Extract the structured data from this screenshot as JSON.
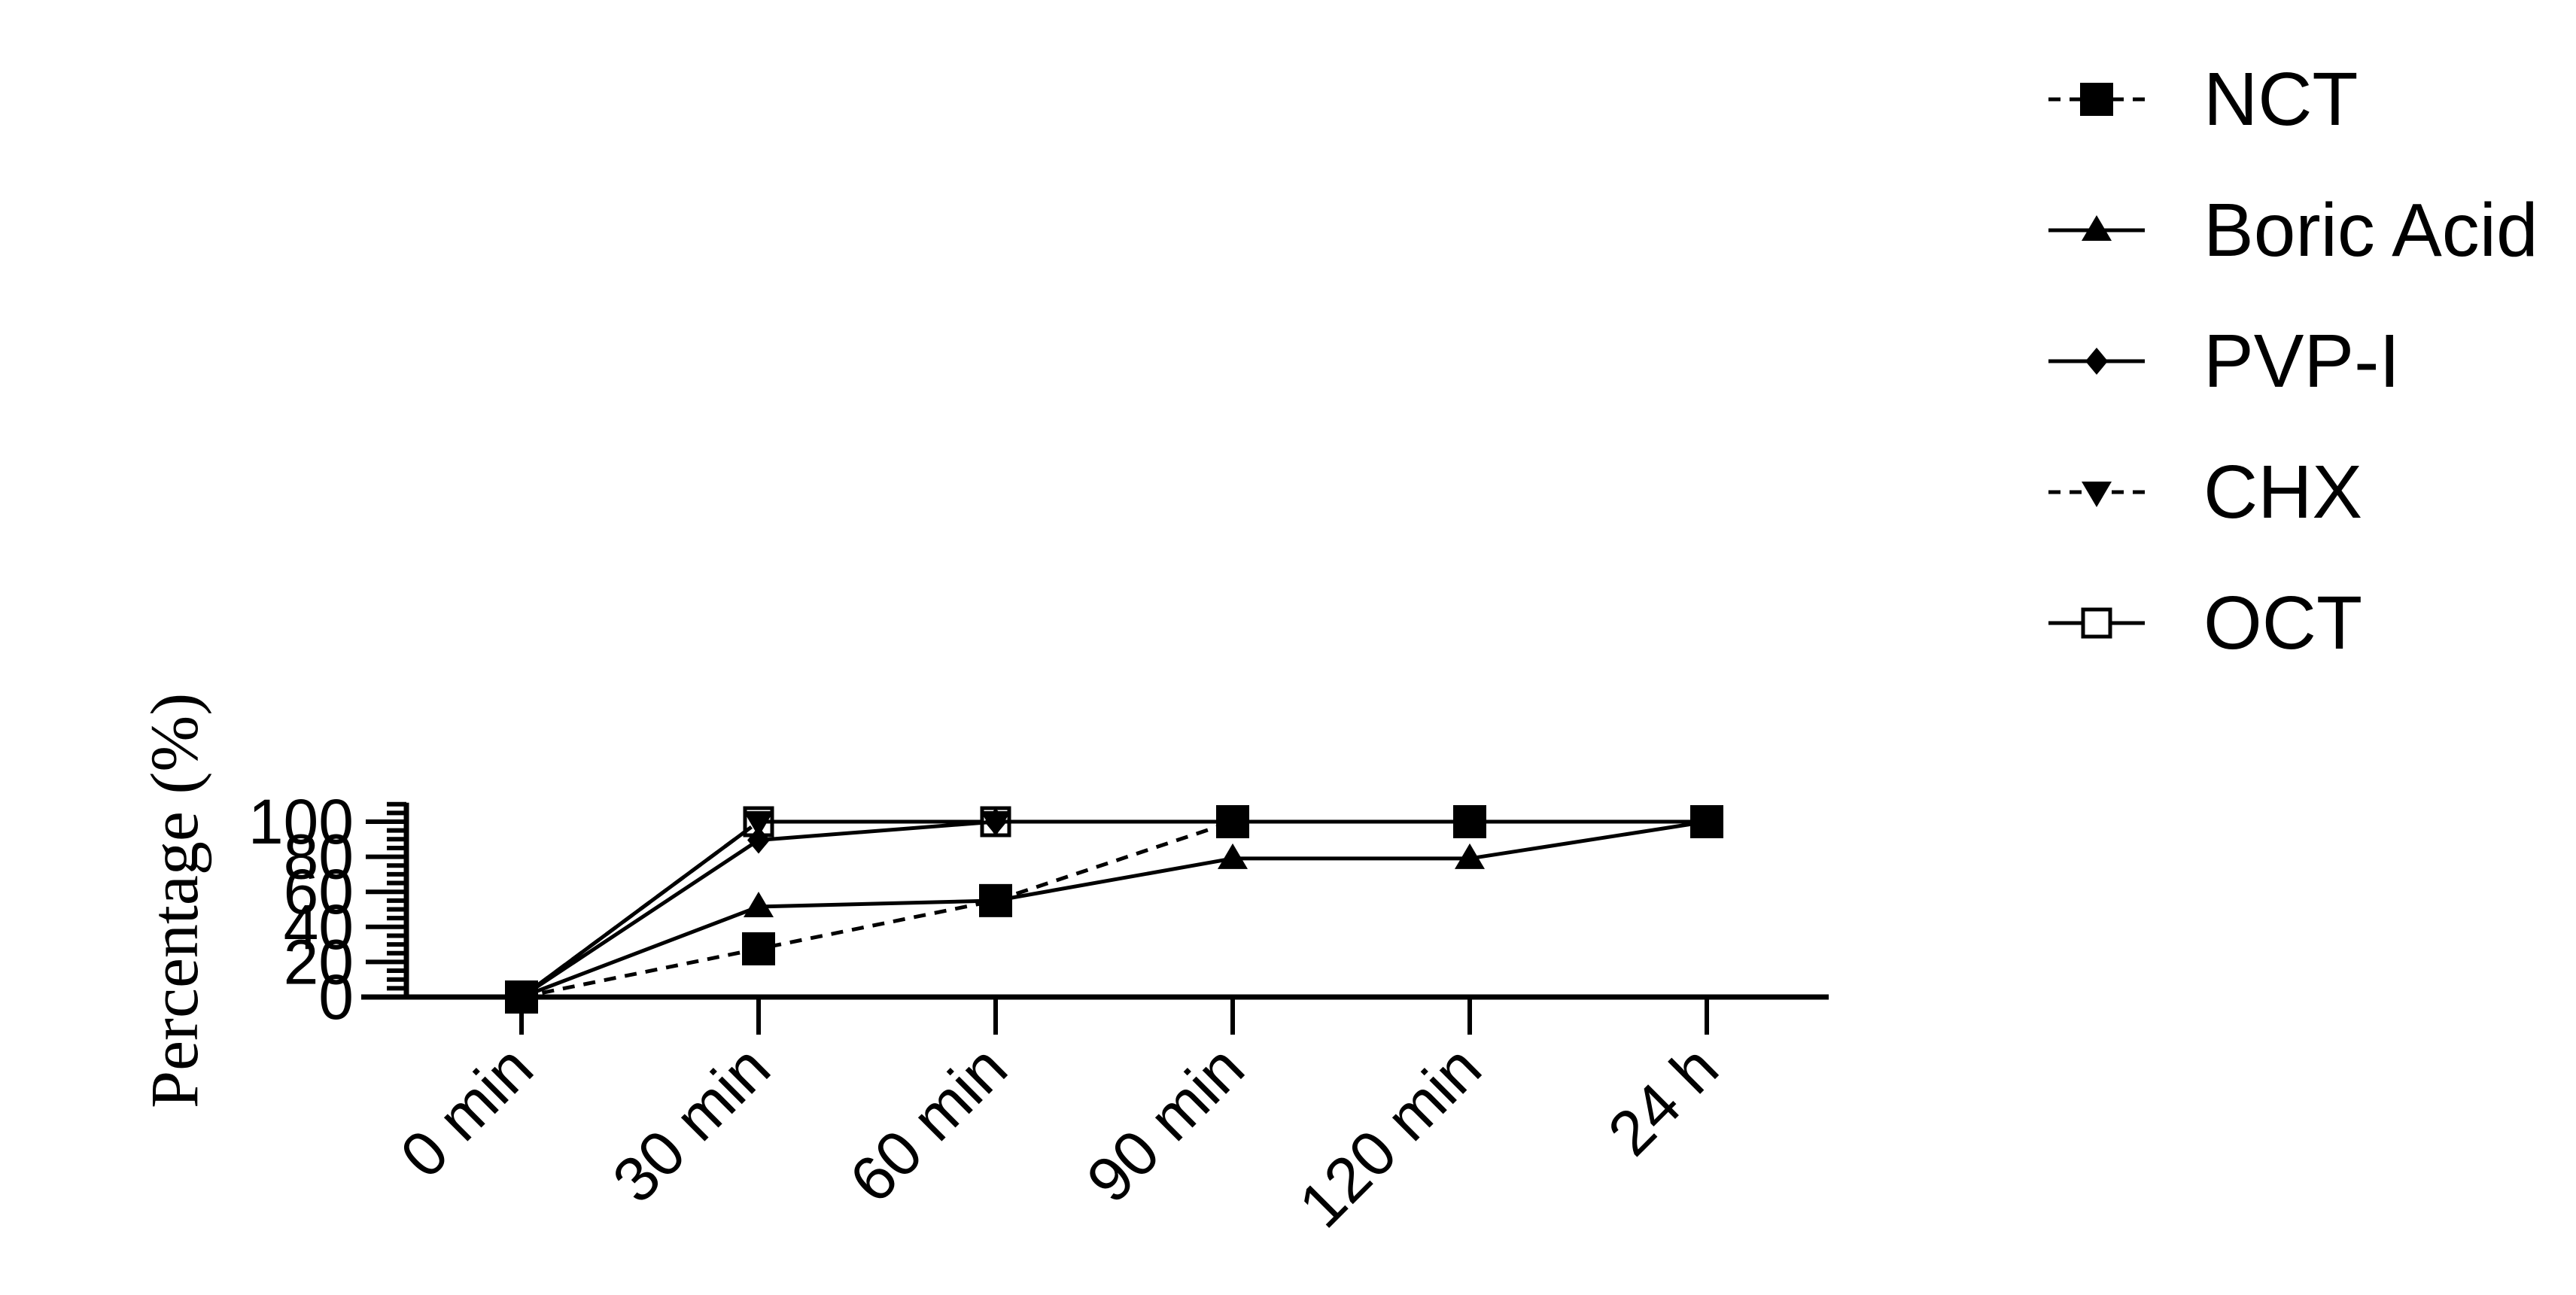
{
  "chart_data": {
    "type": "line",
    "title": "",
    "xlabel": "",
    "ylabel": "Percentage (%)",
    "categories": [
      "0 min",
      "30 min",
      "60 min",
      "90 min",
      "120 min",
      "24 h"
    ],
    "ylim": [
      0,
      110
    ],
    "yticks": [
      0,
      20,
      40,
      60,
      80,
      100
    ],
    "grid": false,
    "legend_position": "right",
    "series": [
      {
        "name": "NCT",
        "values": [
          0,
          27.5,
          55,
          100,
          100,
          100
        ],
        "marker": "square-filled",
        "dash": "dashed"
      },
      {
        "name": "Boric Acid",
        "values": [
          0,
          51.5,
          55,
          79,
          79,
          100
        ],
        "marker": "triangle-up-filled",
        "dash": "solid"
      },
      {
        "name": "PVP-I",
        "values": [
          0,
          89.5,
          100,
          100,
          100,
          100
        ],
        "marker": "diamond-filled",
        "dash": "solid"
      },
      {
        "name": "CHX",
        "values": [
          0,
          100,
          100,
          100,
          100,
          100
        ],
        "marker": "triangle-down-filled",
        "dash": "dashed"
      },
      {
        "name": "OCT",
        "values": [
          0,
          100,
          100,
          100,
          100,
          100
        ],
        "marker": "square-open",
        "dash": "solid"
      }
    ]
  }
}
